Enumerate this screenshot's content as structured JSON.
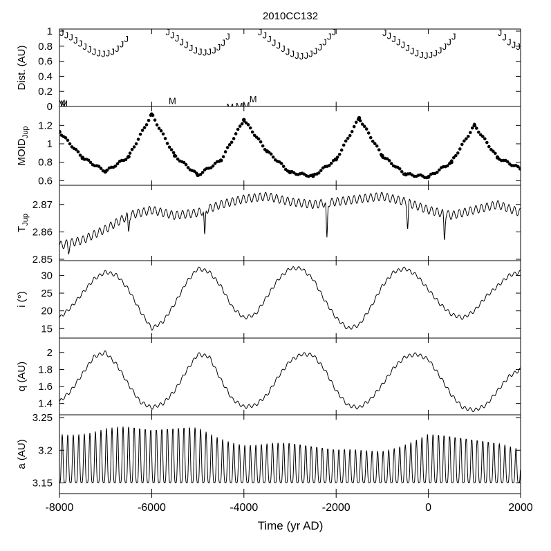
{
  "chart_data": {
    "type": "line",
    "title": "2010CC132",
    "xlabel": "Time (yr AD)",
    "xlim": [
      -8000,
      2000
    ],
    "xticks": [
      -8000,
      -6000,
      -4000,
      -2000,
      0,
      2000
    ],
    "xtick_labels": [
      "-8000",
      "-6000",
      "-4000",
      "-2000",
      "0",
      "2000"
    ],
    "panels": [
      {
        "id": "dist",
        "kind": "letters",
        "ylabel": "Dist. (AU)",
        "ylim": [
          0,
          1
        ],
        "yticks": [
          0,
          0.2,
          0.4,
          0.6,
          0.8,
          1
        ],
        "ytick_labels": [
          "0",
          "0.2",
          "0.4",
          "0.6",
          "0.8",
          "1"
        ],
        "series": [
          {
            "name": "J",
            "x": [
              -7950,
              -7850,
              -7750,
              -7650,
              -7550,
              -7450,
              -7350,
              -7250,
              -7150,
              -7050,
              -6950,
              -6850,
              -6750,
              -6650,
              -6550,
              -5650,
              -5550,
              -5450,
              -5350,
              -5250,
              -5150,
              -5050,
              -4950,
              -4850,
              -4750,
              -4650,
              -4550,
              -4450,
              -4350,
              -3650,
              -3550,
              -3450,
              -3350,
              -3250,
              -3150,
              -3050,
              -2950,
              -2850,
              -2750,
              -2650,
              -2550,
              -2450,
              -2350,
              -2250,
              -2150,
              -2050,
              -950,
              -850,
              -750,
              -650,
              -550,
              -450,
              -350,
              -250,
              -150,
              -50,
              50,
              150,
              250,
              350,
              450,
              550,
              1550,
              1650,
              1750,
              1850,
              1950
            ],
            "y": [
              0.98,
              0.95,
              0.92,
              0.88,
              0.84,
              0.8,
              0.76,
              0.73,
              0.71,
              0.7,
              0.71,
              0.73,
              0.77,
              0.83,
              0.9,
              0.99,
              0.95,
              0.91,
              0.86,
              0.82,
              0.78,
              0.75,
              0.73,
              0.72,
              0.73,
              0.75,
              0.79,
              0.85,
              0.93,
              0.99,
              0.95,
              0.9,
              0.85,
              0.81,
              0.77,
              0.73,
              0.7,
              0.68,
              0.67,
              0.68,
              0.7,
              0.74,
              0.79,
              0.86,
              0.93,
              0.99,
              0.98,
              0.94,
              0.9,
              0.86,
              0.82,
              0.78,
              0.74,
              0.71,
              0.69,
              0.68,
              0.69,
              0.71,
              0.75,
              0.8,
              0.86,
              0.93,
              0.98,
              0.92,
              0.86,
              0.82,
              0.8
            ]
          },
          {
            "name": "M",
            "x": [
              -7950,
              -7900,
              -5550,
              -4300,
              -4100,
              -3950,
              -3800
            ],
            "y": [
              0.05,
              0.04,
              0.08,
              0.0,
              0.01,
              0.02,
              0.1
            ]
          }
        ]
      },
      {
        "id": "moid",
        "kind": "dots",
        "ylabel": "MOID_Jup",
        "ylim": [
          0.58,
          1.36
        ],
        "yticks": [
          0.6,
          0.8,
          1,
          1.2
        ],
        "ytick_labels": [
          "0.6",
          "0.8",
          "1",
          "1.2"
        ],
        "series": [
          {
            "name": "MOID_Jup",
            "x": [
              -8000,
              -7500,
              -7000,
              -6500,
              -6000,
              -5500,
              -5000,
              -4500,
              -4000,
              -3500,
              -3000,
              -2500,
              -2000,
              -1500,
              -1000,
              -500,
              0,
              500,
              1000,
              1500,
              2000
            ],
            "y": [
              1.13,
              0.85,
              0.7,
              0.86,
              1.32,
              0.87,
              0.66,
              0.82,
              1.26,
              0.92,
              0.69,
              0.65,
              0.83,
              1.28,
              0.87,
              0.67,
              0.64,
              0.8,
              1.2,
              0.85,
              0.73
            ]
          }
        ]
      },
      {
        "id": "tjup",
        "kind": "line",
        "ylabel": "T_Jup",
        "ylim": [
          2.85,
          2.875
        ],
        "yticks": [
          2.85,
          2.86,
          2.87
        ],
        "ytick_labels": [
          "2.85",
          "2.86",
          "2.87"
        ],
        "series": [
          {
            "name": "T_Jup",
            "x": [
              -8000,
              -7500,
              -7000,
              -6500,
              -6000,
              -5500,
              -5000,
              -4500,
              -4000,
              -3500,
              -3000,
              -2500,
              -2000,
              -1500,
              -1000,
              -500,
              0,
              500,
              1000,
              1500,
              2000
            ],
            "y": [
              2.855,
              2.857,
              2.861,
              2.866,
              2.868,
              2.866,
              2.867,
              2.87,
              2.872,
              2.873,
              2.871,
              2.87,
              2.871,
              2.872,
              2.873,
              2.871,
              2.868,
              2.866,
              2.868,
              2.87,
              2.867
            ],
            "dips": [
              [
                -7800,
                2.852
              ],
              [
                -6500,
                2.86
              ],
              [
                -4850,
                2.859
              ],
              [
                -2200,
                2.858
              ],
              [
                -450,
                2.861
              ],
              [
                350,
                2.857
              ]
            ]
          }
        ]
      },
      {
        "id": "incl",
        "kind": "line",
        "ylabel": "i (°)",
        "ylim": [
          13.5,
          33
        ],
        "yticks": [
          15,
          20,
          25,
          30
        ],
        "ytick_labels": [
          "15",
          "20",
          "25",
          "30"
        ],
        "series": [
          {
            "name": "i",
            "x": [
              -8000,
              -7750,
              -7500,
              -7250,
              -7000,
              -6750,
              -6500,
              -6250,
              -6000,
              -5750,
              -5500,
              -5250,
              -5000,
              -4750,
              -4500,
              -4250,
              -4000,
              -3750,
              -3500,
              -3250,
              -3000,
              -2750,
              -2500,
              -2250,
              -2000,
              -1750,
              -1500,
              -1250,
              -1000,
              -750,
              -500,
              -250,
              0,
              250,
              500,
              750,
              1000,
              1250,
              1500,
              1750,
              2000
            ],
            "y": [
              18,
              21,
              25,
              29,
              31,
              30,
              26,
              20,
              15,
              17,
              22,
              28,
              32,
              31,
              27,
              21,
              18,
              19,
              24,
              29,
              32,
              32,
              29,
              23,
              18,
              15,
              16,
              21,
              27,
              31,
              32,
              30,
              26,
              22,
              19,
              18,
              20,
              24,
              27,
              30,
              31
            ]
          }
        ]
      },
      {
        "id": "q",
        "kind": "line",
        "ylabel": "q (AU)",
        "ylim": [
          1.3,
          2.12
        ],
        "yticks": [
          1.4,
          1.6,
          1.8,
          2
        ],
        "ytick_labels": [
          "1.4",
          "1.6",
          "1.8",
          "2"
        ],
        "series": [
          {
            "name": "q",
            "x": [
              -8000,
              -7750,
              -7500,
              -7250,
              -7000,
              -6750,
              -6500,
              -6250,
              -6000,
              -5750,
              -5500,
              -5250,
              -5000,
              -4750,
              -4500,
              -4250,
              -4000,
              -3750,
              -3500,
              -3250,
              -3000,
              -2750,
              -2500,
              -2250,
              -2000,
              -1750,
              -1500,
              -1250,
              -1000,
              -750,
              -500,
              -250,
              0,
              250,
              500,
              750,
              1000,
              1250,
              1500,
              1750,
              2000
            ],
            "y": [
              1.42,
              1.55,
              1.75,
              1.95,
              2.0,
              1.85,
              1.62,
              1.42,
              1.35,
              1.4,
              1.55,
              1.78,
              1.98,
              1.95,
              1.68,
              1.45,
              1.36,
              1.38,
              1.5,
              1.72,
              1.9,
              1.98,
              1.97,
              1.8,
              1.55,
              1.38,
              1.35,
              1.45,
              1.62,
              1.82,
              1.95,
              1.98,
              1.92,
              1.72,
              1.5,
              1.35,
              1.32,
              1.38,
              1.55,
              1.72,
              1.8
            ]
          }
        ]
      },
      {
        "id": "a",
        "kind": "line",
        "ylabel": "a (AU)",
        "ylim": [
          3.14,
          3.25
        ],
        "yticks": [
          3.15,
          3.2,
          3.25
        ],
        "ytick_labels": [
          "3.15",
          "3.2",
          "3.25"
        ],
        "series": [
          {
            "name": "a",
            "low": 3.15,
            "period_yr": 120,
            "x": [
              -8000,
              -7000,
              -6000,
              -5000,
              -4000,
              -3000,
              -2000,
              -1000,
              0,
              1000,
              2000
            ],
            "peak": [
              3.23,
              3.24,
              3.23,
              3.235,
              3.215,
              3.21,
              3.2,
              3.205,
              3.225,
              3.215,
              3.205
            ]
          }
        ]
      }
    ]
  }
}
